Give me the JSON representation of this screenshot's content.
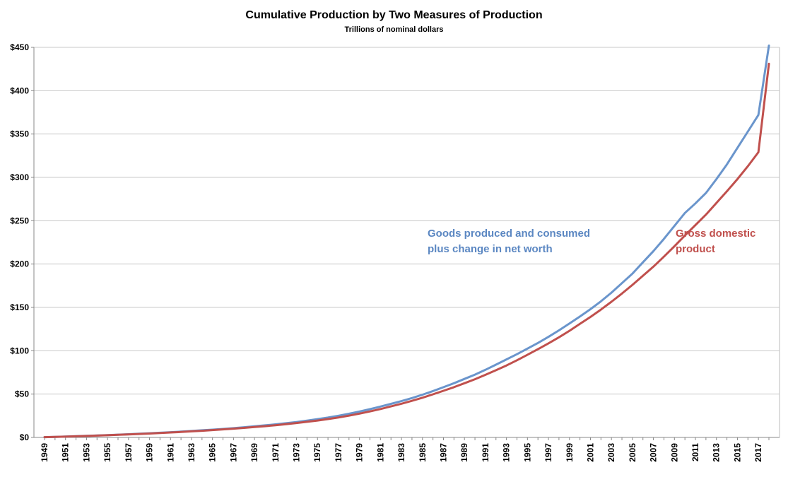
{
  "chart_data": {
    "type": "line",
    "title": "Cumulative Production by Two Measures of Production",
    "subtitle": "Trillions of nominal dollars",
    "xlabel": "",
    "ylabel": "",
    "ylim": [
      0,
      450
    ],
    "xlim": [
      1949,
      2018
    ],
    "grid": "horizontal",
    "y_ticks": [
      0,
      50,
      100,
      150,
      200,
      250,
      300,
      350,
      400,
      450
    ],
    "y_tick_labels": [
      "$0",
      "$50",
      "$100",
      "$150",
      "$200",
      "$250",
      "$300",
      "$350",
      "$400",
      "$450"
    ],
    "x_tick_labels": [
      "1949",
      "1951",
      "1953",
      "1955",
      "1957",
      "1959",
      "1961",
      "1963",
      "1965",
      "1967",
      "1969",
      "1971",
      "1973",
      "1975",
      "1977",
      "1979",
      "1981",
      "1983",
      "1985",
      "1987",
      "1989",
      "1991",
      "1993",
      "1995",
      "1997",
      "1999",
      "2001",
      "2003",
      "2005",
      "2007",
      "2009",
      "2011",
      "2013",
      "2015",
      "2017"
    ],
    "x": [
      1949,
      1950,
      1951,
      1952,
      1953,
      1954,
      1955,
      1956,
      1957,
      1958,
      1959,
      1960,
      1961,
      1962,
      1963,
      1964,
      1965,
      1966,
      1967,
      1968,
      1969,
      1970,
      1971,
      1972,
      1973,
      1974,
      1975,
      1976,
      1977,
      1978,
      1979,
      1980,
      1981,
      1982,
      1983,
      1984,
      1985,
      1986,
      1987,
      1988,
      1989,
      1990,
      1991,
      1992,
      1993,
      1994,
      1995,
      1996,
      1997,
      1998,
      1999,
      2000,
      2001,
      2002,
      2003,
      2004,
      2005,
      2006,
      2007,
      2008,
      2009,
      2010,
      2011,
      2012,
      2013,
      2014,
      2015,
      2016,
      2017,
      2018
    ],
    "series": [
      {
        "name": "Goods produced and consumed plus change in net worth",
        "color": "#6a95cc",
        "values": [
          0.3,
          0.6,
          1.0,
          1.4,
          1.8,
          2.2,
          2.7,
          3.2,
          3.7,
          4.2,
          4.8,
          5.4,
          6.0,
          6.7,
          7.4,
          8.2,
          9.0,
          9.8,
          10.7,
          11.7,
          12.8,
          13.9,
          15.1,
          16.4,
          17.8,
          19.4,
          21.1,
          22.9,
          25.0,
          27.3,
          29.8,
          32.6,
          35.6,
          38.7,
          41.9,
          45.4,
          49.3,
          53.5,
          58.0,
          62.5,
          67.5,
          72.5,
          78.0,
          84.0,
          90.0,
          96.0,
          102.5,
          109.0,
          116.0,
          123.5,
          131.5,
          139.5,
          148.0,
          157.0,
          167.0,
          178.0,
          189.0,
          202.0,
          215.0,
          229.0,
          244.0,
          259.0,
          270.0,
          282.0,
          298.0,
          315.0,
          334.0,
          353.0,
          372.0,
          452.0
        ]
      },
      {
        "name": "Gross domestic product",
        "color": "#c0504d",
        "values": [
          0.3,
          0.6,
          0.9,
          1.3,
          1.7,
          2.1,
          2.5,
          3.0,
          3.5,
          4.0,
          4.5,
          5.1,
          5.7,
          6.3,
          7.0,
          7.7,
          8.5,
          9.3,
          10.1,
          11.0,
          12.0,
          13.0,
          14.1,
          15.3,
          16.6,
          18.0,
          19.5,
          21.2,
          23.0,
          25.1,
          27.5,
          30.0,
          32.8,
          35.8,
          38.9,
          42.2,
          45.8,
          49.7,
          53.8,
          58.0,
          62.5,
          67.2,
          72.2,
          77.5,
          83.0,
          89.0,
          95.3,
          101.8,
          108.5,
          115.5,
          123.0,
          131.0,
          139.0,
          147.5,
          156.5,
          166.0,
          176.0,
          186.5,
          197.0,
          208.5,
          220.5,
          233.0,
          245.0,
          257.0,
          270.5,
          284.0,
          298.0,
          313.0,
          329.0,
          431.0
        ]
      }
    ],
    "annotations": [
      {
        "text_line1": "Goods produced and consumed",
        "text_line2": "plus change in net worth",
        "color": "#5b87c2"
      },
      {
        "text_line1": "Gross domestic",
        "text_line2": "product",
        "color": "#c0504d"
      }
    ]
  }
}
